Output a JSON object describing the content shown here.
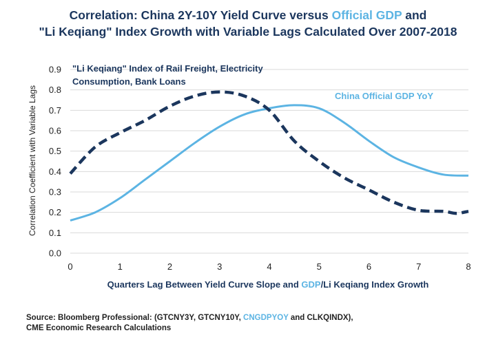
{
  "title": {
    "line1_a": "Correlation: China 2Y-10Y Yield Curve versus ",
    "line1_b": "Official GDP",
    "line1_c": " and",
    "line2": "\"Li Keqiang\" Index Growth with Variable Lags Calculated Over 2007-2018"
  },
  "source": {
    "line1_a": "Source: Bloomberg Professional: (GTCNY3Y, GTCNY10Y, ",
    "line1_b": "CNGDPYOY",
    "line1_c": " and CLKQINDX),",
    "line2": "CME Economic Research Calculations"
  },
  "colors": {
    "navy": "#1b365d",
    "light_blue": "#5cb4e3",
    "grid": "#d9d9d9",
    "text": "#222222"
  },
  "chart_data": {
    "type": "line",
    "ylabel": "Correlation Coefficient with Variable Lags",
    "xlabel_parts": [
      {
        "text": "Quarters Lag Between Yield Curve Slope and ",
        "accent": false
      },
      {
        "text": "GDP",
        "accent": true
      },
      {
        "text": "/",
        "accent": false
      },
      {
        "text": "Li Keqiang Index",
        "accent": false
      },
      {
        "text": " Growth",
        "accent": false
      }
    ],
    "xlim": [
      0,
      8
    ],
    "ylim": [
      0.0,
      0.9
    ],
    "x_ticks": [
      0,
      1,
      2,
      3,
      4,
      5,
      6,
      7,
      8
    ],
    "y_ticks": [
      "0.0",
      "0.1",
      "0.2",
      "0.3",
      "0.4",
      "0.5",
      "0.6",
      "0.7",
      "0.8",
      "0.9"
    ],
    "grid": "horizontal",
    "series": [
      {
        "name": "\"Li Keqiang\" Index of Rail Freight, Electricity Consumption, Bank Loans",
        "label_lines": [
          "\"Li Keqiang\" Index of Rail Freight, Electricity",
          "Consumption, Bank Loans"
        ],
        "style": "dashed",
        "color": "#1b365d",
        "x": [
          0,
          0.5,
          1,
          1.5,
          2,
          2.5,
          3,
          3.5,
          4,
          4.5,
          5,
          5.5,
          6,
          6.5,
          7,
          7.5,
          7.75,
          8
        ],
        "values": [
          0.39,
          0.52,
          0.59,
          0.65,
          0.72,
          0.77,
          0.79,
          0.77,
          0.7,
          0.55,
          0.45,
          0.37,
          0.31,
          0.25,
          0.21,
          0.205,
          0.195,
          0.205
        ]
      },
      {
        "name": "China Official GDP YoY",
        "label_lines": [
          "China Official GDP YoY"
        ],
        "style": "solid",
        "color": "#5cb4e3",
        "x": [
          0,
          0.5,
          1,
          1.5,
          2,
          2.5,
          3,
          3.5,
          4,
          4.5,
          5,
          5.5,
          6,
          6.5,
          7,
          7.5,
          8
        ],
        "values": [
          0.16,
          0.2,
          0.27,
          0.36,
          0.45,
          0.54,
          0.62,
          0.68,
          0.71,
          0.725,
          0.71,
          0.64,
          0.55,
          0.47,
          0.42,
          0.385,
          0.38
        ]
      }
    ]
  }
}
